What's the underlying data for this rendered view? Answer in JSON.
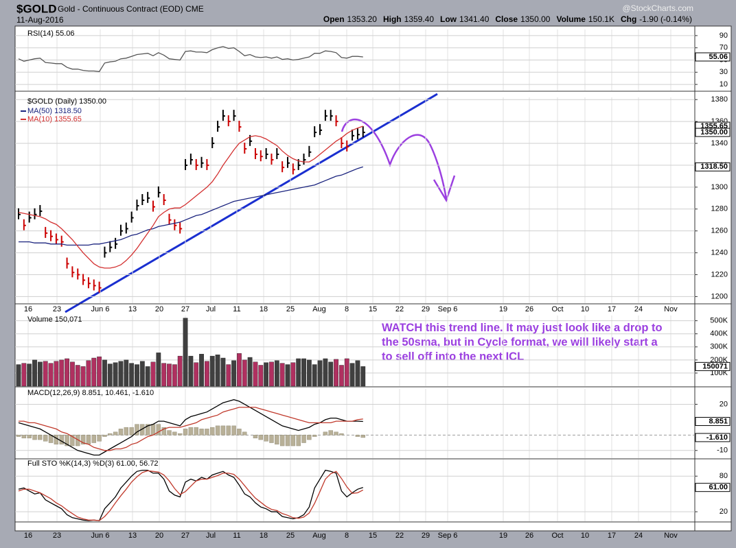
{
  "header": {
    "symbol": "$GOLD",
    "name": "Gold - Continuous Contract (EOD) CME",
    "date": "11-Aug-2016",
    "source": "@StockCharts.com",
    "quote": [
      [
        "Open",
        "1353.20"
      ],
      [
        "High",
        "1359.40"
      ],
      [
        "Low",
        "1341.40"
      ],
      [
        "Close",
        "1350.00"
      ],
      [
        "Volume",
        "150.1K"
      ],
      [
        "Chg",
        "-1.90 (-0.14%)"
      ]
    ]
  },
  "annotation": "WATCH this trend line. It may just look like a drop to the 50sma, but in Cycle format, we will likely start a to sell off into the next ICL",
  "xticks": [
    "16",
    "23",
    "Jun 6",
    "13",
    "20",
    "27",
    "Jul",
    "11",
    "18",
    "25",
    "Aug",
    "8",
    "15",
    "22",
    "29",
    "Sep 6",
    "19",
    "26",
    "Oct",
    "10",
    "17",
    "24",
    "Nov"
  ],
  "chart_data": [
    {
      "type": "line",
      "title": "RSI(14) 55.06",
      "ylim": [
        0,
        100
      ],
      "yticks": [
        10,
        30,
        50,
        70,
        90
      ],
      "series": [
        {
          "color": "#555555",
          "values": [
            52,
            48,
            50,
            52,
            53,
            46,
            45,
            44,
            44,
            38,
            35,
            35,
            33,
            32,
            32,
            31,
            45,
            47,
            48,
            52,
            53,
            56,
            59,
            60,
            61,
            57,
            62,
            58,
            52,
            51,
            50,
            64,
            65,
            63,
            63,
            62,
            67,
            70,
            72,
            69,
            70,
            64,
            57,
            59,
            55,
            54,
            55,
            53,
            55,
            51,
            52,
            50,
            51,
            53,
            55,
            61,
            61,
            65,
            64,
            62,
            54,
            53,
            56,
            56,
            55.06
          ]
        }
      ],
      "tags": [
        55.06
      ]
    },
    {
      "type": "price",
      "title": "$GOLD (Daily) 1350.00",
      "ylim": [
        1194,
        1382
      ],
      "yticks": [
        1200,
        1220,
        1240,
        1260,
        1280,
        1300,
        1320,
        1340,
        1360,
        1380
      ],
      "up_color": "#000000",
      "down_color": "#cc0000",
      "bars": [
        1275,
        1265,
        1272,
        1275,
        1278,
        1258,
        1255,
        1252,
        1250,
        1230,
        1222,
        1220,
        1215,
        1212,
        1210,
        1208,
        1240,
        1245,
        1248,
        1260,
        1262,
        1272,
        1283,
        1288,
        1290,
        1282,
        1295,
        1288,
        1270,
        1265,
        1262,
        1320,
        1325,
        1320,
        1322,
        1320,
        1340,
        1355,
        1365,
        1360,
        1365,
        1355,
        1335,
        1342,
        1330,
        1328,
        1330,
        1325,
        1330,
        1318,
        1322,
        1316,
        1320,
        1325,
        1332,
        1350,
        1352,
        1365,
        1365,
        1360,
        1340,
        1337,
        1347,
        1348,
        1350
      ],
      "series": [
        {
          "name": "MA(50) 1318.50",
          "color": "#1a237e",
          "values": [
            1250,
            1250,
            1250,
            1249,
            1249,
            1249,
            1248,
            1248,
            1248,
            1247,
            1247,
            1247,
            1247,
            1247,
            1248,
            1248,
            1249,
            1250,
            1251,
            1252,
            1254,
            1256,
            1257,
            1259,
            1261,
            1262,
            1264,
            1265,
            1266,
            1267,
            1268,
            1270,
            1272,
            1274,
            1275,
            1277,
            1279,
            1281,
            1283,
            1285,
            1287,
            1288,
            1289,
            1290,
            1291,
            1292,
            1293,
            1294,
            1295,
            1296,
            1297,
            1298,
            1299,
            1300,
            1301,
            1302,
            1304,
            1306,
            1308,
            1310,
            1311,
            1313,
            1315,
            1317,
            1318.5
          ]
        },
        {
          "name": "MA(10) 1355.65",
          "color": "#d32f2f",
          "values": [
            1277,
            1276,
            1275,
            1274,
            1273,
            1271,
            1268,
            1266,
            1262,
            1257,
            1252,
            1246,
            1240,
            1235,
            1230,
            1227,
            1226,
            1226,
            1227,
            1229,
            1233,
            1238,
            1244,
            1251,
            1258,
            1265,
            1273,
            1277,
            1280,
            1281,
            1281,
            1284,
            1288,
            1292,
            1296,
            1300,
            1305,
            1312,
            1320,
            1327,
            1334,
            1340,
            1343,
            1346,
            1347,
            1346,
            1344,
            1341,
            1338,
            1333,
            1329,
            1326,
            1324,
            1323,
            1323,
            1326,
            1330,
            1334,
            1338,
            1342,
            1345,
            1349,
            1352,
            1354,
            1355.65
          ]
        }
      ],
      "tags": [
        {
          "value": 1355.65,
          "label": "1355.65"
        },
        {
          "value": 1350,
          "label": "1350.00"
        },
        {
          "value": 1318.5,
          "label": "1318.50"
        }
      ]
    },
    {
      "type": "volume",
      "title": "Volume 150,071",
      "ylim": [
        0,
        540
      ],
      "yticks": [
        {
          "value": 100,
          "label": "100K"
        },
        {
          "value": 200,
          "label": "200K"
        },
        {
          "value": 300,
          "label": "300K"
        },
        {
          "value": 400,
          "label": "400K"
        },
        {
          "value": 500,
          "label": "500K"
        }
      ],
      "up_color": "#404040",
      "down_color": "#b03060",
      "values": [
        165,
        175,
        170,
        200,
        185,
        190,
        175,
        190,
        200,
        210,
        185,
        160,
        150,
        195,
        215,
        225,
        200,
        170,
        180,
        190,
        200,
        175,
        165,
        190,
        150,
        185,
        255,
        175,
        170,
        165,
        230,
        520,
        230,
        180,
        245,
        190,
        230,
        240,
        215,
        165,
        195,
        250,
        200,
        220,
        185,
        160,
        180,
        185,
        195,
        175,
        165,
        180,
        210,
        210,
        200,
        165,
        195,
        210,
        185,
        205,
        160,
        210,
        175,
        195,
        150.071
      ],
      "tags": [
        {
          "value": 150.071,
          "label": "150071"
        }
      ]
    },
    {
      "type": "macd",
      "title": "MACD(12,26,9) 8.851, 10.461, -1.610",
      "ylim": [
        -15,
        30
      ],
      "yticks": [
        -10,
        20
      ],
      "histogram": {
        "color": "#b8b098",
        "values": [
          -1,
          -2,
          -2,
          -3,
          -3,
          -4,
          -5,
          -6,
          -6,
          -7,
          -7,
          -7,
          -6,
          -6,
          -5,
          -4,
          -1,
          1,
          2,
          4,
          5,
          5,
          7,
          7,
          7,
          7,
          7,
          5,
          3,
          2,
          1,
          4,
          5,
          5,
          4,
          4,
          5,
          6,
          6,
          6,
          6,
          4,
          2,
          0,
          -2,
          -3,
          -4,
          -5,
          -6,
          -7,
          -7,
          -7,
          -7,
          -5,
          -3,
          -1,
          0,
          2,
          3,
          2,
          1,
          0,
          0,
          -1,
          -1.61
        ]
      },
      "series": [
        {
          "color": "#000000",
          "values": [
            8,
            7,
            6,
            5,
            4,
            2,
            0,
            -2,
            -4,
            -6,
            -8,
            -10,
            -11,
            -12,
            -13,
            -13,
            -11,
            -9,
            -7,
            -5,
            -3,
            -1,
            2,
            4,
            6,
            7,
            9,
            9,
            8,
            7,
            6,
            10,
            12,
            13,
            14,
            15,
            17,
            19,
            21,
            22,
            23,
            22,
            20,
            18,
            16,
            14,
            12,
            10,
            8,
            6,
            5,
            4,
            3,
            4,
            5,
            7,
            8,
            10,
            11,
            11,
            10,
            9,
            9,
            9,
            8.851
          ]
        },
        {
          "color": "#c0392b",
          "values": [
            9,
            9,
            8,
            8,
            7,
            6,
            5,
            4,
            2,
            1,
            -1,
            -3,
            -5,
            -6,
            -8,
            -9,
            -10,
            -10,
            -9,
            -9,
            -8,
            -6,
            -5,
            -3,
            -1,
            0,
            2,
            4,
            5,
            5,
            5,
            6,
            7,
            8,
            10,
            11,
            12,
            13,
            15,
            16,
            17,
            18,
            18,
            18,
            18,
            17,
            16,
            15,
            14,
            13,
            12,
            11,
            10,
            9,
            8,
            8,
            8,
            8,
            8,
            9,
            9,
            9,
            9,
            10,
            10.461
          ]
        }
      ],
      "tags": [
        8.851,
        {
          "value": -1.61,
          "label": "-1.610"
        }
      ]
    },
    {
      "type": "line",
      "title": "Full STO %K(14,3) %D(3) 61.00, 56.72",
      "ylim": [
        4,
        108
      ],
      "yticks": [
        20,
        80
      ],
      "series": [
        {
          "color": "#000000",
          "values": [
            58,
            60,
            55,
            50,
            52,
            40,
            35,
            30,
            25,
            15,
            10,
            8,
            6,
            5,
            6,
            5,
            25,
            35,
            45,
            60,
            70,
            80,
            88,
            90,
            90,
            85,
            85,
            75,
            55,
            48,
            45,
            70,
            75,
            72,
            78,
            75,
            82,
            85,
            88,
            82,
            78,
            65,
            50,
            45,
            35,
            28,
            25,
            20,
            20,
            12,
            10,
            8,
            10,
            15,
            28,
            60,
            75,
            90,
            88,
            85,
            55,
            45,
            52,
            58,
            61
          ]
        },
        {
          "color": "#c0392b",
          "values": [
            55,
            58,
            58,
            55,
            52,
            47,
            42,
            35,
            30,
            23,
            17,
            11,
            8,
            6,
            6,
            5,
            12,
            22,
            35,
            47,
            58,
            70,
            79,
            86,
            89,
            88,
            87,
            82,
            72,
            59,
            49,
            54,
            63,
            72,
            75,
            75,
            78,
            81,
            85,
            85,
            83,
            75,
            64,
            53,
            43,
            36,
            29,
            24,
            22,
            17,
            14,
            10,
            9,
            11,
            18,
            34,
            54,
            75,
            84,
            88,
            76,
            62,
            51,
            52,
            56.72
          ]
        }
      ],
      "tags": [
        {
          "value": 61,
          "label": "61.00"
        }
      ]
    }
  ]
}
